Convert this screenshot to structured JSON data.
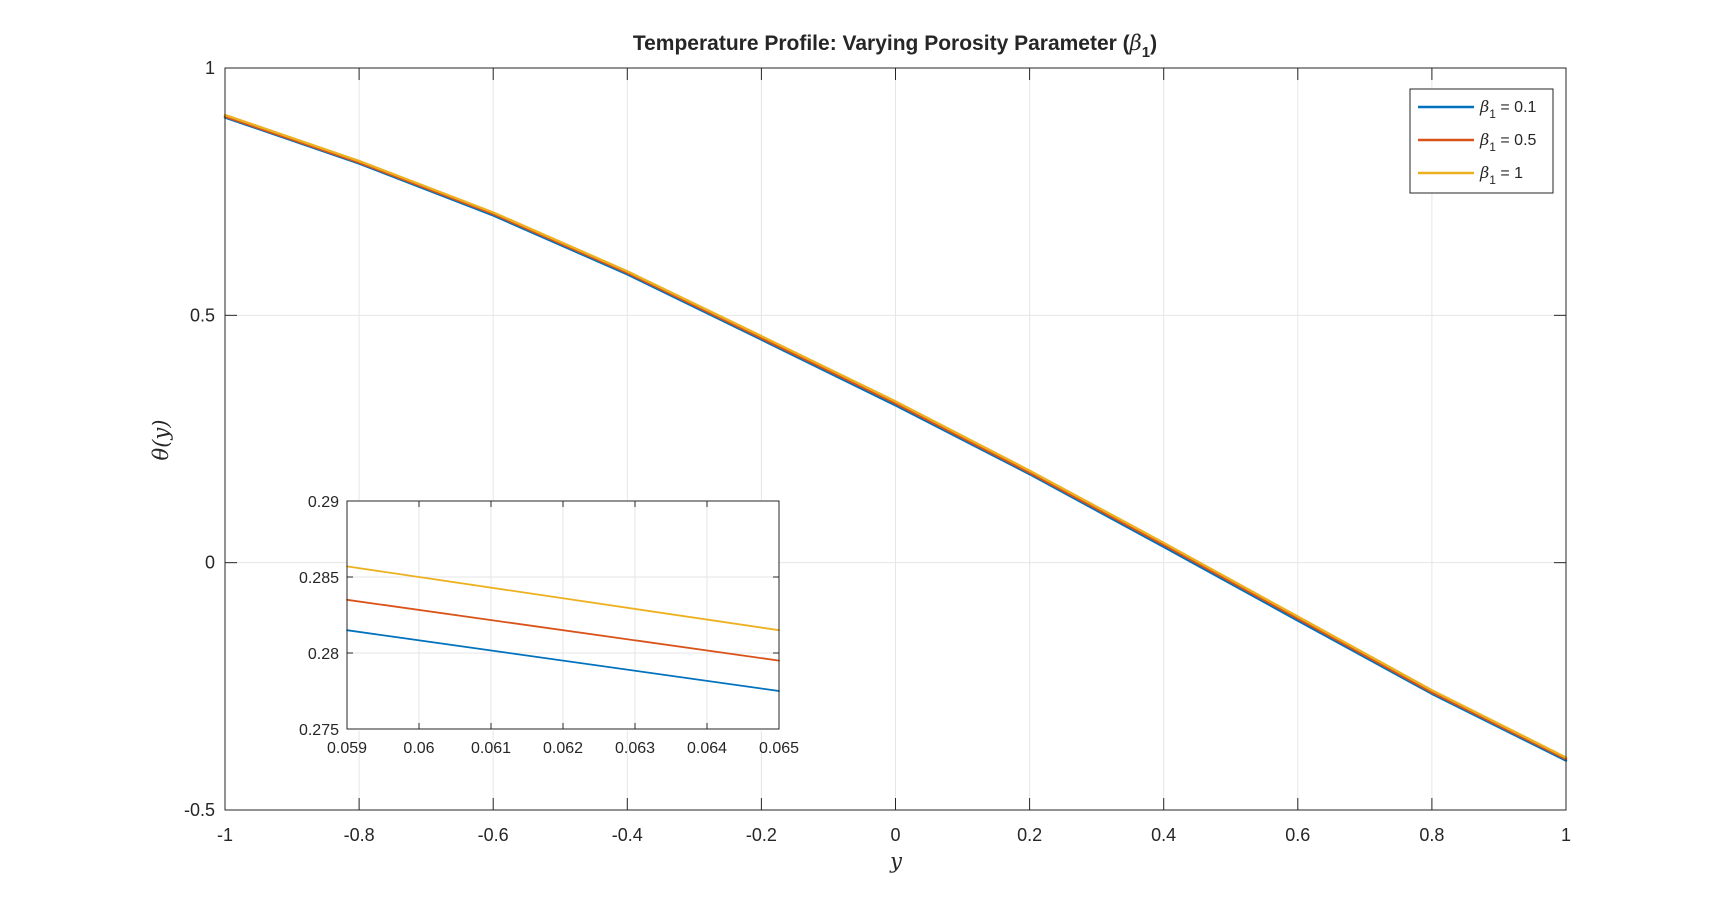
{
  "chart_data": [
    {
      "type": "line",
      "title": "Temperature Profile: Varying Porosity Parameter (β1)",
      "title_parts": {
        "prefix": "Temperature Profile: Varying Porosity Parameter (",
        "symbol": "β",
        "subscript": "1",
        "suffix": ")"
      },
      "xlabel": "y",
      "ylabel": "θ(y)",
      "xlim": [
        -1,
        1
      ],
      "ylim": [
        -0.5,
        1
      ],
      "grid": true,
      "legend_position": "top-right",
      "xticks": [
        -1,
        -0.8,
        -0.6,
        -0.4,
        -0.2,
        0,
        0.2,
        0.4,
        0.6,
        0.8,
        1
      ],
      "xtick_labels": [
        "-1",
        "-0.8",
        "-0.6",
        "-0.4",
        "-0.2",
        "0",
        "0.2",
        "0.4",
        "0.6",
        "0.8",
        "1"
      ],
      "yticks": [
        -0.5,
        0,
        0.5,
        1
      ],
      "ytick_labels": [
        "-0.5",
        "0",
        "0.5",
        "1"
      ],
      "x": [
        -1,
        -0.8,
        -0.6,
        -0.4,
        -0.2,
        0,
        0.2,
        0.4,
        0.6,
        0.8,
        1
      ],
      "series": [
        {
          "name": "β1 = 0.1",
          "symbol": "β",
          "subscript": "1",
          "value_label": " = 0.1",
          "color": "#0072BD",
          "values": [
            0.9,
            0.807,
            0.702,
            0.583,
            0.451,
            0.318,
            0.179,
            0.032,
            -0.117,
            -0.265,
            -0.4
          ]
        },
        {
          "name": "β1 = 0.5",
          "symbol": "β",
          "subscript": "1",
          "value_label": " = 0.5",
          "color": "#D95319",
          "values": [
            0.902,
            0.809,
            0.705,
            0.586,
            0.454,
            0.322,
            0.182,
            0.036,
            -0.113,
            -0.262,
            -0.397
          ]
        },
        {
          "name": "β1 = 1",
          "symbol": "β",
          "subscript": "1",
          "value_label": " = 1",
          "color": "#EDB120",
          "values": [
            0.905,
            0.812,
            0.708,
            0.589,
            0.458,
            0.326,
            0.186,
            0.04,
            -0.109,
            -0.258,
            -0.394
          ]
        }
      ]
    },
    {
      "type": "line",
      "title": "",
      "xlabel": "",
      "ylabel": "",
      "xlim": [
        0.059,
        0.065
      ],
      "ylim": [
        0.275,
        0.29
      ],
      "grid": true,
      "xticks": [
        0.059,
        0.06,
        0.061,
        0.062,
        0.063,
        0.064,
        0.065
      ],
      "xtick_labels": [
        "0.059",
        "0.06",
        "0.061",
        "0.062",
        "0.063",
        "0.064",
        "0.065"
      ],
      "yticks": [
        0.275,
        0.28,
        0.285,
        0.29
      ],
      "ytick_labels": [
        "0.275",
        "0.28",
        "0.285",
        "0.29"
      ],
      "x": [
        0.059,
        0.065
      ],
      "series": [
        {
          "name": "β1 = 0.1",
          "color": "#0072BD",
          "values": [
            0.2815,
            0.2775
          ]
        },
        {
          "name": "β1 = 0.5",
          "color": "#D95319",
          "values": [
            0.2835,
            0.2795
          ]
        },
        {
          "name": "β1 = 1",
          "color": "#EDB120",
          "values": [
            0.2857,
            0.2815
          ]
        }
      ]
    }
  ]
}
